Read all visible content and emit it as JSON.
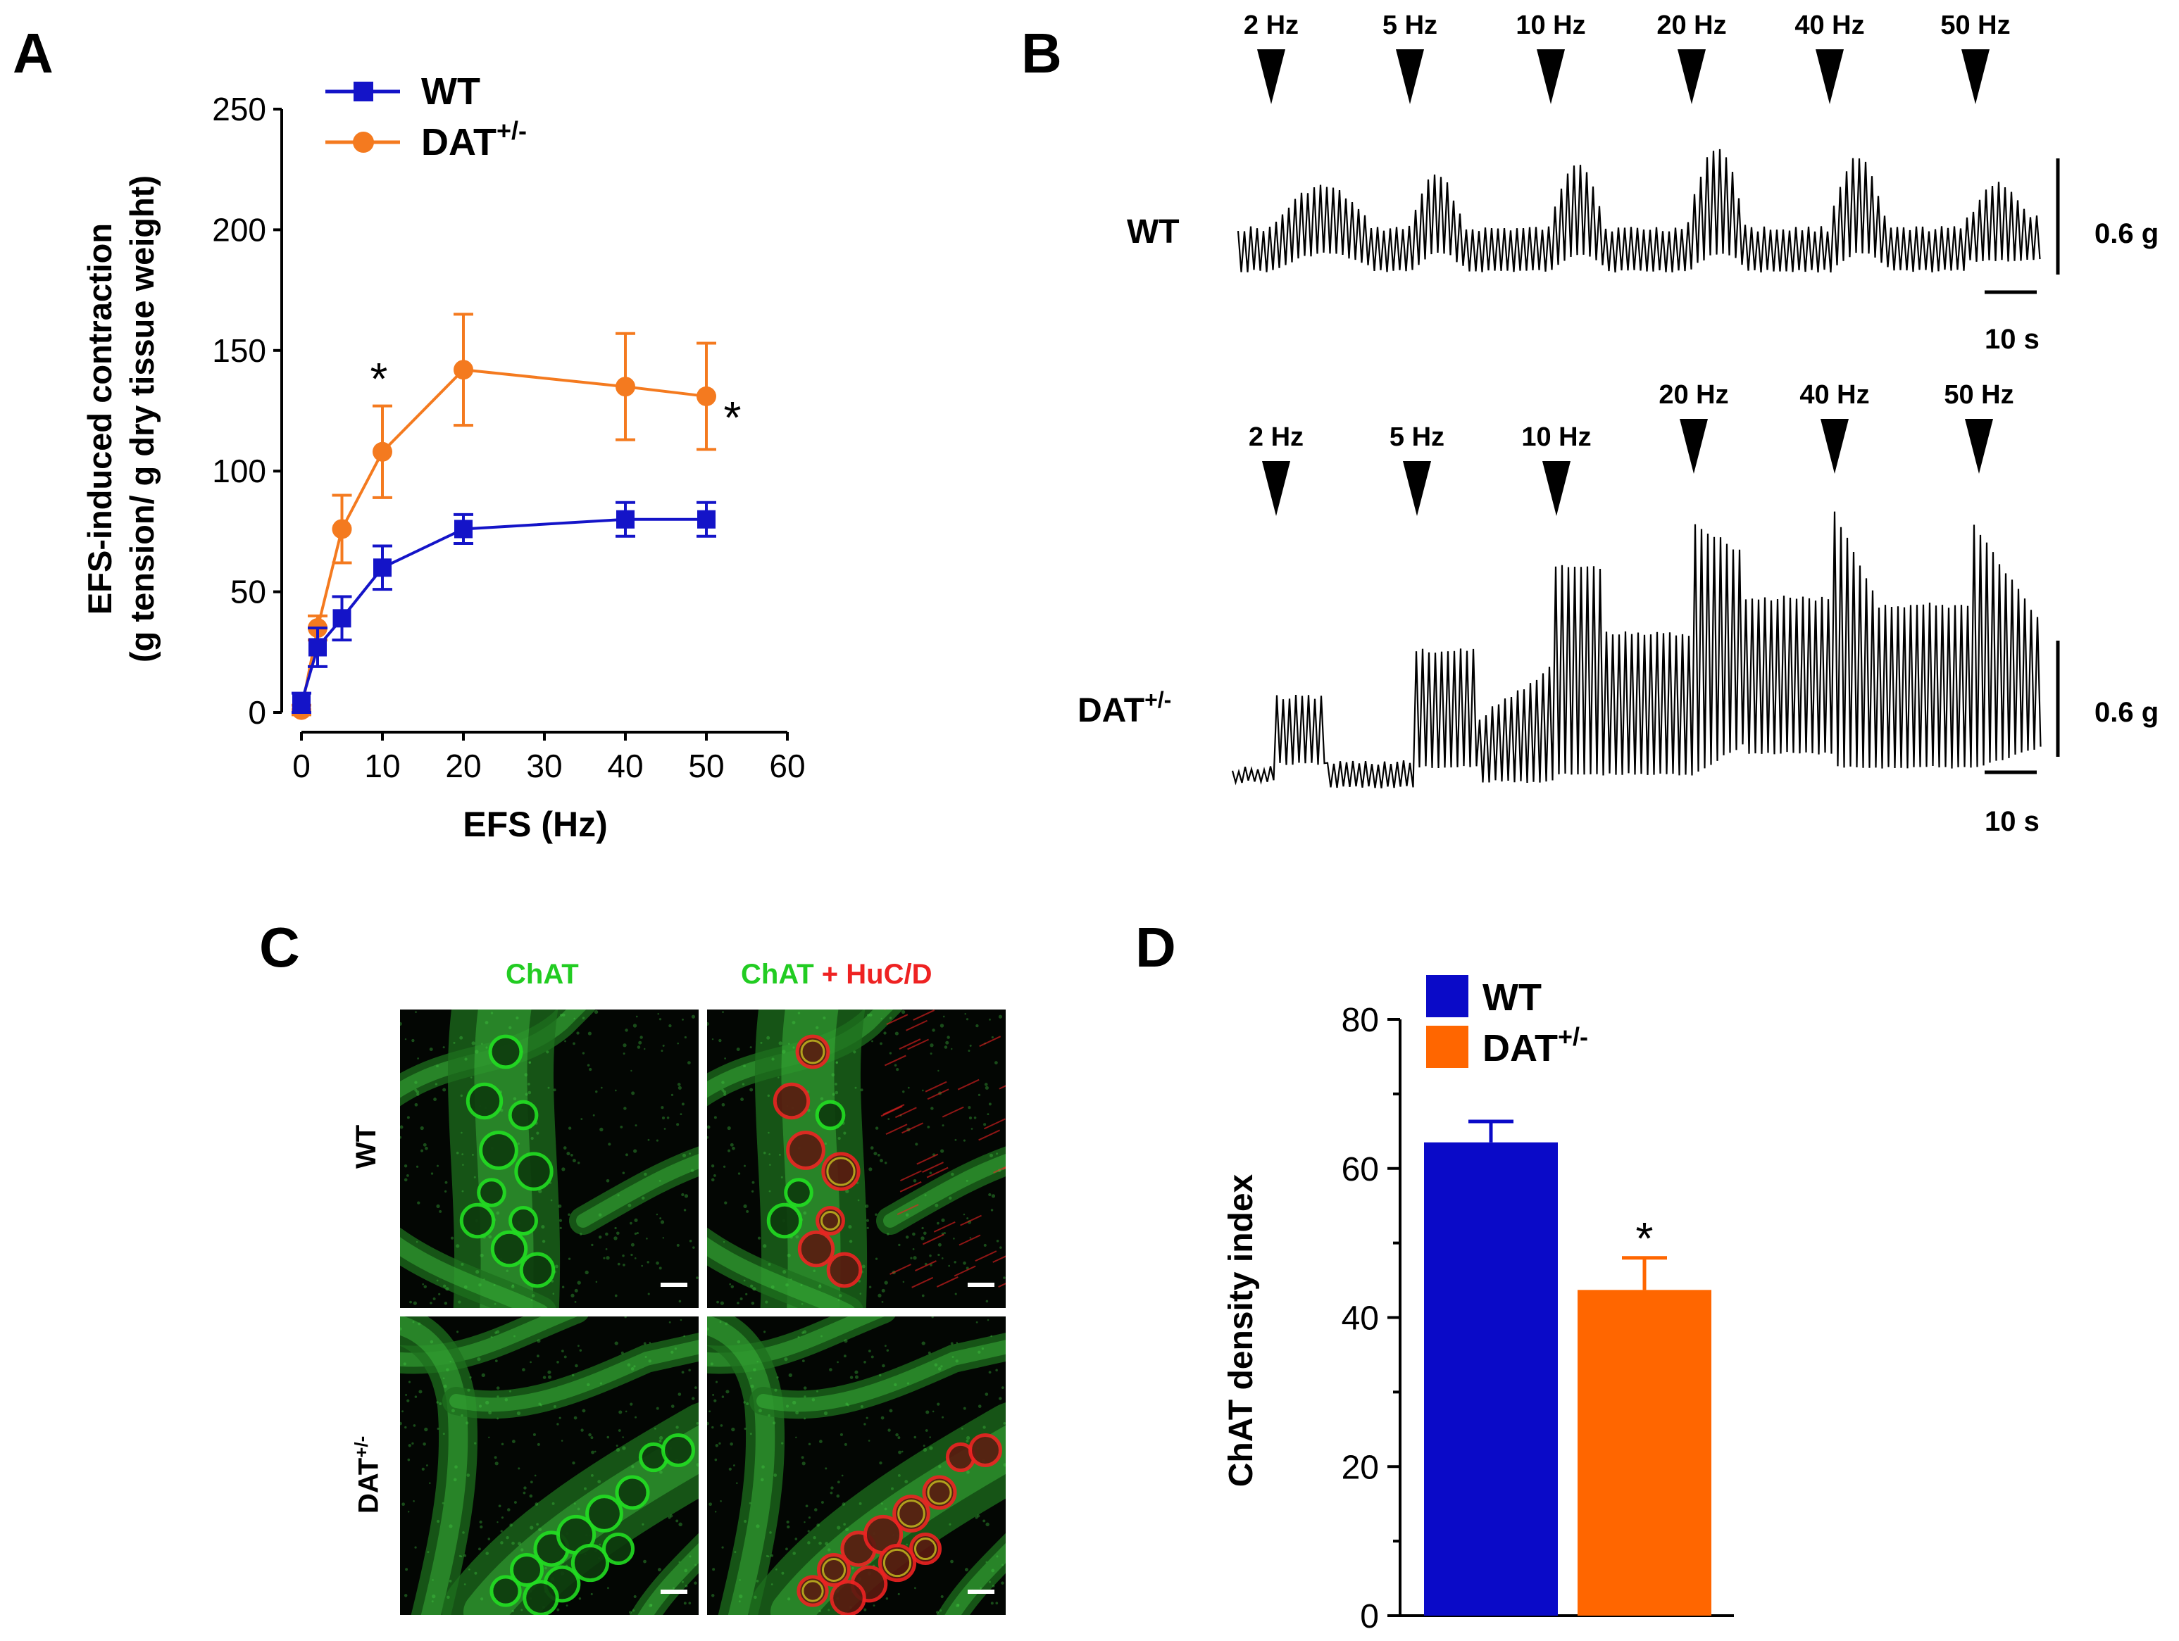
{
  "panel_a": {
    "letter": "A",
    "legend": [
      {
        "label": "WT",
        "sup": "",
        "color": "#1414c8",
        "marker": "square"
      },
      {
        "label": "DAT",
        "sup": "+/-",
        "color": "#f47a1f",
        "marker": "circle"
      }
    ],
    "asterisks": [
      "*",
      "*"
    ]
  },
  "panel_b": {
    "letter": "B",
    "wt_label": "WT",
    "dat_label": "DAT",
    "dat_sup": "+/-",
    "frequencies": [
      "2 Hz",
      "5 Hz",
      "10 Hz",
      "20 Hz",
      "40 Hz",
      "50 Hz"
    ],
    "scale_tension": "0.6 g",
    "scale_time": "10 s"
  },
  "panel_c": {
    "letter": "C",
    "col1": "ChAT",
    "col2_a": "ChAT",
    "col2_plus": " + ",
    "col2_b": "HuC/D",
    "row1": "WT",
    "row2": "DAT",
    "row2_sup": "+/-",
    "green": "#22dd22",
    "red": "#ee2222"
  },
  "panel_d": {
    "letter": "D",
    "legend": [
      {
        "label": "WT",
        "sup": "",
        "color": "#0a0ac8"
      },
      {
        "label": "DAT",
        "sup": "+/-",
        "color": "#ff6600"
      }
    ],
    "asterisk": "*"
  },
  "chart_data": [
    {
      "type": "line",
      "xlabel": "EFS (Hz)",
      "ylabel": "EFS-induced contraction",
      "ylabel2": "(g tension/ g dry tissue weight)",
      "xlim": [
        0,
        60
      ],
      "ylim": [
        0,
        250
      ],
      "xticks": [
        "0",
        "10",
        "20",
        "30",
        "40",
        "50",
        "60"
      ],
      "yticks": [
        "0",
        "50",
        "100",
        "150",
        "200",
        "250"
      ],
      "series": [
        {
          "name": "WT",
          "color": "#1414c8",
          "marker": "square",
          "x": [
            0,
            2,
            5,
            10,
            20,
            40,
            50
          ],
          "y": [
            4,
            27,
            39,
            60,
            76,
            80,
            80
          ],
          "err": [
            4,
            8,
            9,
            9,
            6,
            7,
            7
          ]
        },
        {
          "name": "DAT+/-",
          "color": "#f47a1f",
          "marker": "circle",
          "x": [
            0,
            2,
            5,
            10,
            20,
            40,
            50
          ],
          "y": [
            1,
            35,
            76,
            108,
            142,
            135,
            131
          ],
          "err": [
            2,
            5,
            14,
            19,
            23,
            22,
            22
          ]
        }
      ],
      "annotations": [
        {
          "text": "*",
          "x": 10
        },
        {
          "text": "*",
          "x": 50
        }
      ]
    },
    {
      "type": "bar",
      "ylabel": "ChAT density index",
      "ylim": [
        0,
        80
      ],
      "yticks": [
        "0",
        "20",
        "40",
        "60",
        "80"
      ],
      "categories": [
        "WT",
        "DAT+/-"
      ],
      "values": [
        63.5,
        43.7
      ],
      "err": [
        2.8,
        4.3
      ],
      "colors": [
        "#0a0ac8",
        "#ff6600"
      ],
      "annotations": [
        {
          "text": "*",
          "category": "DAT+/-"
        }
      ]
    }
  ]
}
